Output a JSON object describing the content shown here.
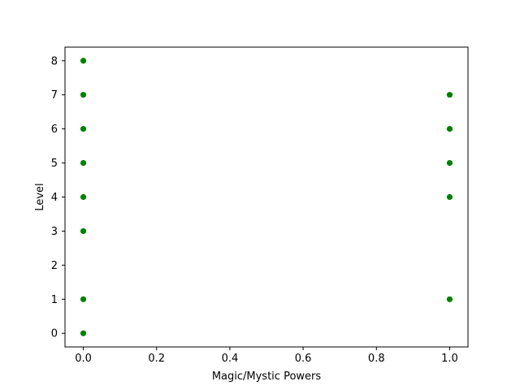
{
  "chart_data": {
    "type": "scatter",
    "title": "",
    "xlabel": "Magic/Mystic Powers",
    "ylabel": "Level",
    "xlim": [
      -0.05,
      1.05
    ],
    "ylim": [
      -0.4,
      8.4
    ],
    "xticks": [
      "0.0",
      "0.2",
      "0.4",
      "0.6",
      "0.8",
      "1.0"
    ],
    "yticks": [
      "0",
      "1",
      "2",
      "3",
      "4",
      "5",
      "6",
      "7",
      "8"
    ],
    "grid": false,
    "marker_color": "#008000",
    "series": [
      {
        "points": [
          {
            "x": 0,
            "y": 0
          },
          {
            "x": 0,
            "y": 1
          },
          {
            "x": 0,
            "y": 3
          },
          {
            "x": 0,
            "y": 4
          },
          {
            "x": 0,
            "y": 5
          },
          {
            "x": 0,
            "y": 6
          },
          {
            "x": 0,
            "y": 7
          },
          {
            "x": 0,
            "y": 8
          },
          {
            "x": 1,
            "y": 1
          },
          {
            "x": 1,
            "y": 4
          },
          {
            "x": 1,
            "y": 5
          },
          {
            "x": 1,
            "y": 6
          },
          {
            "x": 1,
            "y": 7
          }
        ]
      }
    ]
  }
}
